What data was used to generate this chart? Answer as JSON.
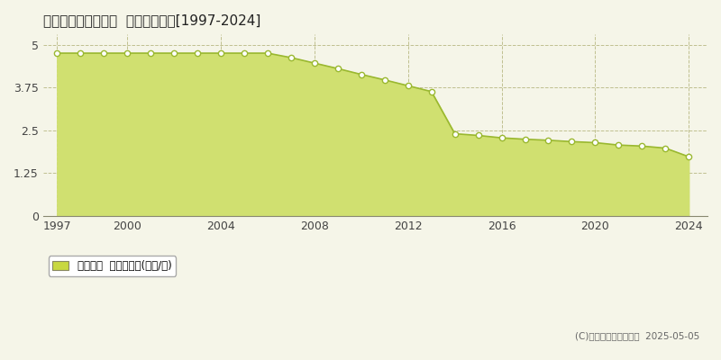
{
  "title": "国頭郡伊江村西江上  基準地価推移[1997-2024]",
  "years": [
    1997,
    1998,
    1999,
    2000,
    2001,
    2002,
    2003,
    2004,
    2005,
    2006,
    2007,
    2008,
    2009,
    2010,
    2011,
    2012,
    2013,
    2014,
    2015,
    2016,
    2017,
    2018,
    2019,
    2020,
    2021,
    2022,
    2023,
    2024
  ],
  "values": [
    4.75,
    4.75,
    4.75,
    4.75,
    4.75,
    4.75,
    4.75,
    4.75,
    4.75,
    4.75,
    4.62,
    4.46,
    4.3,
    4.13,
    3.97,
    3.8,
    3.63,
    2.4,
    2.35,
    2.28,
    2.24,
    2.21,
    2.17,
    2.14,
    2.07,
    2.04,
    1.98,
    1.73
  ],
  "line_color": "#9ab830",
  "fill_color": "#d0e070",
  "marker_facecolor": "#ffffff",
  "marker_edgecolor": "#9ab830",
  "bg_color": "#f5f5e8",
  "grid_color": "#c0c090",
  "yticks": [
    0,
    1.25,
    2.5,
    3.75,
    5
  ],
  "ylim": [
    0,
    5.3
  ],
  "xlim": [
    1996.4,
    2024.8
  ],
  "xticks": [
    1997,
    2000,
    2004,
    2008,
    2012,
    2016,
    2020,
    2024
  ],
  "copyright_text": "(C)土地価格ドットコム  2025-05-05",
  "legend_label": "基準地価  平均坪単価(万円/坪)",
  "legend_sq_color": "#c8d840"
}
